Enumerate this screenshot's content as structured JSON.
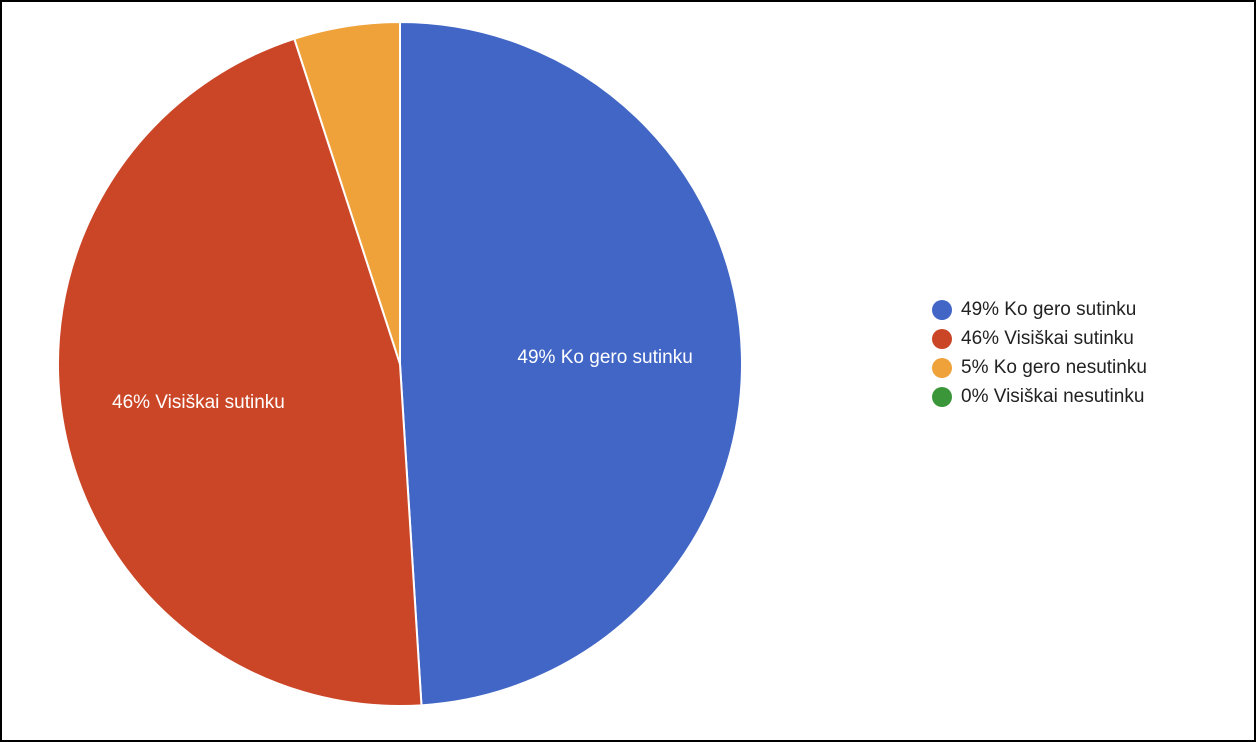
{
  "chart_data": {
    "type": "pie",
    "title": "",
    "slices": [
      {
        "label": "49% Ko gero sutinku",
        "value": 49,
        "color": "#4166c6",
        "slice_label": "49% Ko gero sutinku"
      },
      {
        "label": "46% Visiškai sutinku",
        "value": 46,
        "color": "#cb4627",
        "slice_label": "46% Visiškai sutinku"
      },
      {
        "label": "5% Ko gero nesutinku",
        "value": 5,
        "color": "#f0a23a",
        "slice_label": ""
      },
      {
        "label": "0% Visiškai nesutinku",
        "value": 0,
        "color": "#3b963a",
        "slice_label": ""
      }
    ],
    "legend_position": "right"
  }
}
